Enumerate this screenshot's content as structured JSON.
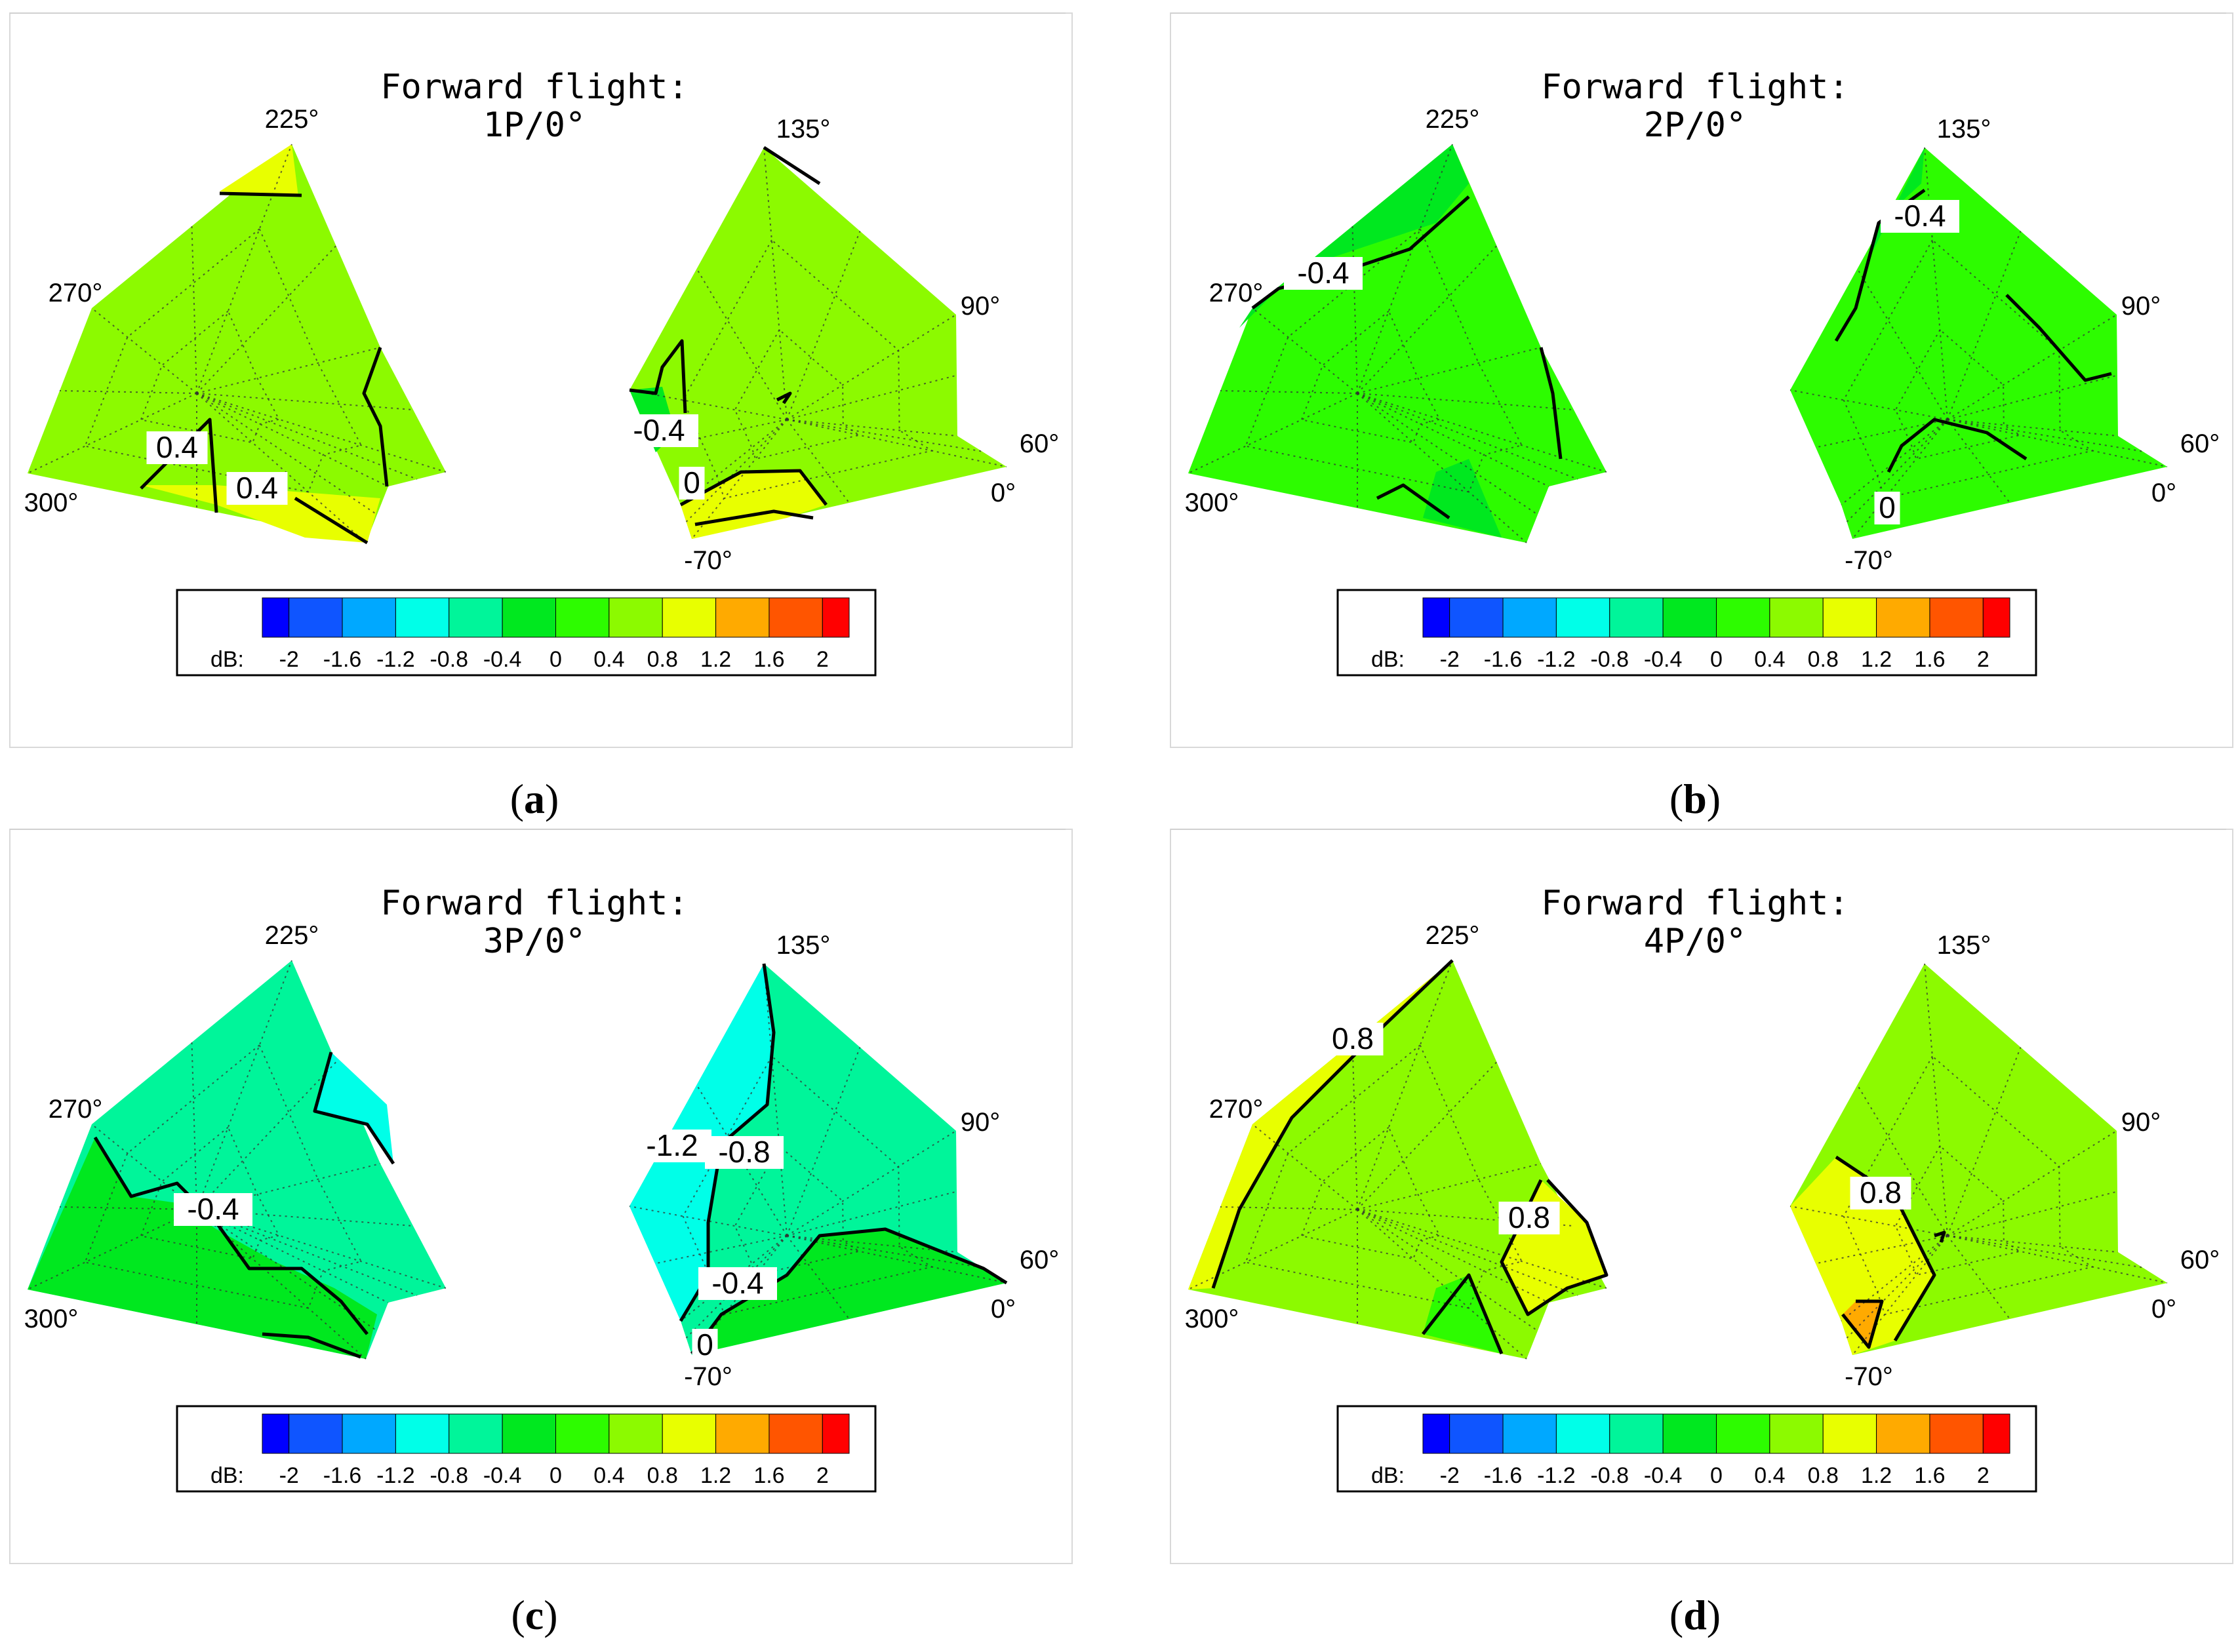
{
  "chart_data": [
    {
      "id": "a",
      "caption": "a",
      "type": "heatmap",
      "title_line1": "Forward flight:",
      "title_line2": "1P/0°",
      "left_angles": [
        "225°",
        "270°",
        "300°"
      ],
      "right_angles": [
        "135°",
        "90°",
        "60°",
        "0°",
        "-70°"
      ],
      "base_level": 0.4,
      "regions": [
        {
          "blob": "left_top_tip",
          "value": 0.8
        },
        {
          "blob": "left_bottom_strip",
          "value": 0.8
        },
        {
          "blob": "right_bottom_cluster",
          "value": 1.0
        },
        {
          "blob": "right_left_notch",
          "value": -0.4
        }
      ],
      "contour_labels": [
        {
          "text": "0.4",
          "side": "left",
          "spot": "bottom-left"
        },
        {
          "text": "0.4",
          "side": "left",
          "spot": "bottom-center"
        },
        {
          "text": "-0.4",
          "side": "right",
          "spot": "left"
        },
        {
          "text": "0",
          "side": "right",
          "spot": "bottom"
        }
      ],
      "colorbar": {
        "label": "dB:",
        "ticks": [
          "-2",
          "-1.6",
          "-1.2",
          "-0.8",
          "-0.4",
          "0",
          "0.4",
          "0.8",
          "1.2",
          "1.6",
          "2"
        ]
      }
    },
    {
      "id": "b",
      "caption": "b",
      "type": "heatmap",
      "title_line1": "Forward flight:",
      "title_line2": "2P/0°",
      "left_angles": [
        "225°",
        "270°",
        "300°"
      ],
      "right_angles": [
        "135°",
        "90°",
        "60°",
        "0°",
        "-70°"
      ],
      "base_level": 0.2,
      "regions": [
        {
          "blob": "left_upper_band",
          "value": -0.4
        },
        {
          "blob": "left_bottom_patch",
          "value": -0.4
        },
        {
          "blob": "right_top_strip",
          "value": -0.4
        }
      ],
      "contour_labels": [
        {
          "text": "-0.4",
          "side": "left",
          "spot": "upper-left"
        },
        {
          "text": "-0.4",
          "side": "right",
          "spot": "top"
        },
        {
          "text": "0",
          "side": "right",
          "spot": "bottom"
        }
      ],
      "colorbar": {
        "label": "dB:",
        "ticks": [
          "-2",
          "-1.6",
          "-1.2",
          "-0.8",
          "-0.4",
          "0",
          "0.4",
          "0.8",
          "1.2",
          "1.6",
          "2"
        ]
      }
    },
    {
      "id": "c",
      "caption": "c",
      "type": "heatmap",
      "title_line1": "Forward flight:",
      "title_line2": "3P/0°",
      "left_angles": [
        "225°",
        "270°",
        "300°"
      ],
      "right_angles": [
        "135°",
        "90°",
        "60°",
        "0°",
        "-70°"
      ],
      "base_level": -0.6,
      "regions": [
        {
          "blob": "left_lower_band",
          "value": -0.2
        },
        {
          "blob": "left_right_notch",
          "value": -1.0
        },
        {
          "blob": "right_left_band",
          "value": -1.0
        },
        {
          "blob": "right_bottom_band",
          "value": -0.2
        }
      ],
      "contour_labels": [
        {
          "text": "-0.4",
          "side": "left",
          "spot": "center"
        },
        {
          "text": "-1.2",
          "side": "right",
          "spot": "left"
        },
        {
          "text": "-0.8",
          "side": "right",
          "spot": "center-left"
        },
        {
          "text": "-0.4",
          "side": "right",
          "spot": "bottom"
        },
        {
          "text": "0",
          "side": "right",
          "spot": "bottom-tip"
        }
      ],
      "colorbar": {
        "label": "dB:",
        "ticks": [
          "-2",
          "-1.6",
          "-1.2",
          "-0.8",
          "-0.4",
          "0",
          "0.4",
          "0.8",
          "1.2",
          "1.6",
          "2"
        ]
      }
    },
    {
      "id": "d",
      "caption": "d",
      "type": "heatmap",
      "title_line1": "Forward flight:",
      "title_line2": "4P/0°",
      "left_angles": [
        "225°",
        "270°",
        "300°"
      ],
      "right_angles": [
        "135°",
        "90°",
        "60°",
        "0°",
        "-70°"
      ],
      "base_level": 0.6,
      "regions": [
        {
          "blob": "left_outer_strip",
          "value": 1.0
        },
        {
          "blob": "left_right_patch",
          "value": 1.0
        },
        {
          "blob": "left_bottom_patch",
          "value": 0.2
        },
        {
          "blob": "right_left_patch",
          "value": 1.0
        },
        {
          "blob": "right_bottom_patch",
          "value": 1.4
        }
      ],
      "contour_labels": [
        {
          "text": "0.8",
          "side": "left",
          "spot": "upper-left"
        },
        {
          "text": "0.8",
          "side": "left",
          "spot": "right"
        },
        {
          "text": "0.8",
          "side": "right",
          "spot": "left"
        }
      ],
      "colorbar": {
        "label": "dB:",
        "ticks": [
          "-2",
          "-1.6",
          "-1.2",
          "-0.8",
          "-0.4",
          "0",
          "0.4",
          "0.8",
          "1.2",
          "1.6",
          "2"
        ]
      }
    }
  ],
  "colormap": {
    "levels": [
      -2,
      -1.6,
      -1.2,
      -0.8,
      -0.4,
      0,
      0.4,
      0.8,
      1.2,
      1.6,
      2
    ],
    "colors": [
      "#0000FF",
      "#0F55FF",
      "#00A8FF",
      "#00FFE8",
      "#00F59A",
      "#00E81F",
      "#2DFC00",
      "#8CFA00",
      "#E8FF00",
      "#FFAA00",
      "#FF5500",
      "#FF0000"
    ]
  }
}
